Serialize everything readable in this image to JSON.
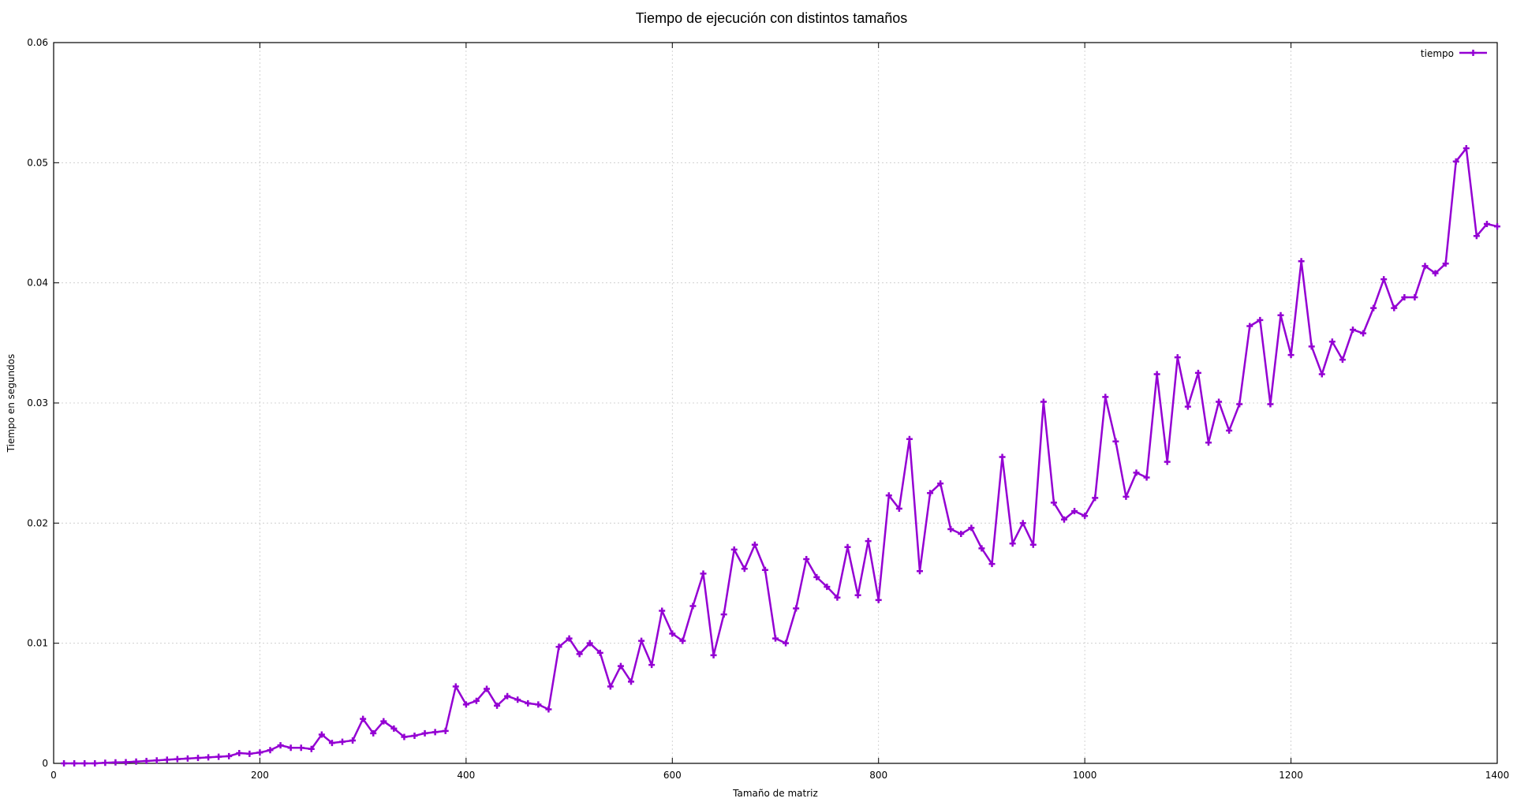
{
  "colors": {
    "series": "#9400d3",
    "axis": "#000000",
    "grid": "#c8c8c8",
    "background": "#ffffff"
  },
  "chart_data": {
    "type": "line",
    "title": "Tiempo de ejecución con distintos tamaños",
    "xlabel": "Tamaño de matriz",
    "ylabel": "Tiempo en segundos",
    "xlim": [
      0,
      1400
    ],
    "ylim": [
      0,
      0.06
    ],
    "xticks": [
      0,
      200,
      400,
      600,
      800,
      1000,
      1200,
      1400
    ],
    "xtick_labels": [
      "0",
      "200",
      "400",
      "600",
      "800",
      "1000",
      "1200",
      "1400"
    ],
    "yticks": [
      0,
      0.01,
      0.02,
      0.03,
      0.04,
      0.05,
      0.06
    ],
    "ytick_labels": [
      "0",
      "0.01",
      "0.02",
      "0.03",
      "0.04",
      "0.05",
      "0.06"
    ],
    "grid": true,
    "legend_position": "top-right",
    "x": [
      10,
      20,
      30,
      40,
      50,
      60,
      70,
      80,
      90,
      100,
      110,
      120,
      130,
      140,
      150,
      160,
      170,
      180,
      190,
      200,
      210,
      220,
      230,
      240,
      250,
      260,
      270,
      280,
      290,
      300,
      310,
      320,
      330,
      340,
      350,
      360,
      370,
      380,
      390,
      400,
      410,
      420,
      430,
      440,
      450,
      460,
      470,
      480,
      490,
      500,
      510,
      520,
      530,
      540,
      550,
      560,
      570,
      580,
      590,
      600,
      610,
      620,
      630,
      640,
      650,
      660,
      670,
      680,
      690,
      700,
      710,
      720,
      730,
      740,
      750,
      760,
      770,
      780,
      790,
      800,
      810,
      820,
      830,
      840,
      850,
      860,
      870,
      880,
      890,
      900,
      910,
      920,
      930,
      940,
      950,
      960,
      970,
      980,
      990,
      1000,
      1010,
      1020,
      1030,
      1040,
      1050,
      1060,
      1070,
      1080,
      1090,
      1100,
      1110,
      1120,
      1130,
      1140,
      1150,
      1160,
      1170,
      1180,
      1190,
      1200,
      1210,
      1220,
      1230,
      1240,
      1250,
      1260,
      1270,
      1280,
      1290,
      1300,
      1310,
      1320,
      1330,
      1340,
      1350,
      1360,
      1370,
      1380,
      1390,
      1400
    ],
    "series": [
      {
        "name": "tiempo",
        "values": [
          0.0,
          0.0,
          0.0,
          0.0,
          5e-05,
          8e-05,
          0.0001,
          0.00015,
          0.0002,
          0.00025,
          0.0003,
          0.00035,
          0.0004,
          0.00045,
          0.0005,
          0.00055,
          0.0006,
          0.00085,
          0.0008,
          0.0009,
          0.0011,
          0.0015,
          0.0013,
          0.0013,
          0.0012,
          0.0024,
          0.0017,
          0.0018,
          0.0019,
          0.0037,
          0.0025,
          0.0035,
          0.0029,
          0.0022,
          0.0023,
          0.0025,
          0.0026,
          0.0027,
          0.0064,
          0.0049,
          0.0052,
          0.0062,
          0.0048,
          0.0056,
          0.0053,
          0.005,
          0.0049,
          0.0045,
          0.0097,
          0.0104,
          0.0091,
          0.01,
          0.0092,
          0.0064,
          0.0081,
          0.0068,
          0.0102,
          0.0082,
          0.0127,
          0.0108,
          0.0102,
          0.0131,
          0.0158,
          0.009,
          0.0124,
          0.0178,
          0.0162,
          0.0182,
          0.0161,
          0.0104,
          0.01,
          0.0129,
          0.017,
          0.0155,
          0.0147,
          0.0138,
          0.018,
          0.014,
          0.0185,
          0.0136,
          0.0223,
          0.0212,
          0.027,
          0.016,
          0.0225,
          0.0233,
          0.0195,
          0.0191,
          0.0196,
          0.0179,
          0.0166,
          0.0255,
          0.0183,
          0.02,
          0.0182,
          0.0301,
          0.0217,
          0.0203,
          0.021,
          0.0206,
          0.0221,
          0.0305,
          0.0268,
          0.0222,
          0.0242,
          0.0238,
          0.0324,
          0.0251,
          0.0338,
          0.0297,
          0.0325,
          0.0267,
          0.0301,
          0.0277,
          0.0299,
          0.0364,
          0.0369,
          0.0299,
          0.0373,
          0.034,
          0.0418,
          0.0347,
          0.0324,
          0.0351,
          0.0336,
          0.0361,
          0.0358,
          0.0379,
          0.0403,
          0.0379,
          0.0388,
          0.0388,
          0.0414,
          0.0408,
          0.0416,
          0.0501,
          0.0512,
          0.0439,
          0.0449,
          0.0447
        ]
      }
    ]
  }
}
